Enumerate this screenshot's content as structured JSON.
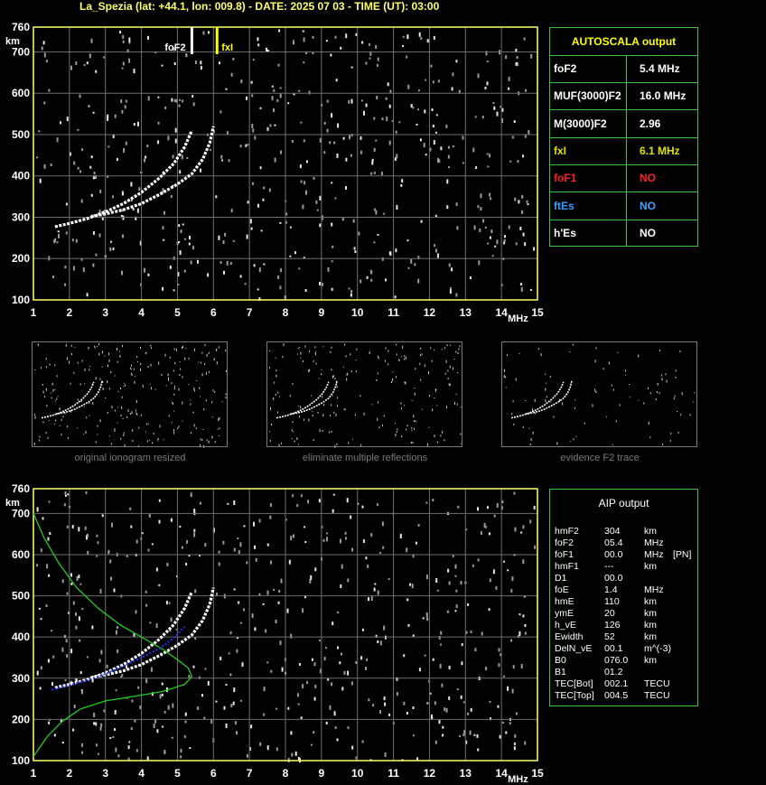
{
  "header": {
    "title": "La_Spezia (lat: +44.1, lon: 009.8) - DATE: 2025 07 03 - TIME (UT): 03:00"
  },
  "colors": {
    "axis": "#ffff66",
    "grid": "#6e6e6e",
    "trace": "#ffffff",
    "panel_border": "#3cc23c",
    "profile": "#22cc22",
    "fit": "#2233ff",
    "foF1": "#ff2020",
    "ftEs": "#3aa0ff",
    "fxI": "#e0e000"
  },
  "chart_data": [
    {
      "type": "scatter",
      "name": "ionogram-top",
      "x_tick_labels": [
        "1",
        "2",
        "3",
        "4",
        "5",
        "6",
        "7",
        "8",
        "9",
        "10",
        "11",
        "12",
        "13",
        "14",
        "15"
      ],
      "y_tick_labels": [
        "100",
        "200",
        "300",
        "400",
        "500",
        "600",
        "700",
        "760"
      ],
      "xunit": "MHz",
      "yunit": "km",
      "xlim": [
        1,
        15
      ],
      "ylim": [
        100,
        760
      ],
      "grid": true,
      "markers": [
        {
          "label": "foF2",
          "x": 5.4,
          "color": "#ffffff"
        },
        {
          "label": "fxI",
          "x": 6.1,
          "color": "#ffff00"
        }
      ],
      "series": [
        {
          "x": [
            1.6,
            2.0,
            2.5,
            3.0,
            3.5,
            4.0,
            4.5,
            4.9,
            5.2,
            5.4
          ],
          "y": [
            277,
            285,
            297,
            313,
            333,
            360,
            395,
            430,
            470,
            510
          ]
        },
        {
          "x": [
            2.6,
            3.0,
            3.5,
            4.0,
            4.5,
            5.0,
            5.4,
            5.7,
            5.9,
            6.0
          ],
          "y": [
            302,
            308,
            318,
            333,
            355,
            380,
            405,
            440,
            480,
            520
          ]
        }
      ]
    },
    {
      "type": "scatter",
      "name": "ionogram-bottom",
      "x_tick_labels": [
        "1",
        "2",
        "3",
        "4",
        "5",
        "6",
        "7",
        "8",
        "9",
        "10",
        "11",
        "12",
        "13",
        "14",
        "15"
      ],
      "y_tick_labels": [
        "100",
        "200",
        "300",
        "400",
        "500",
        "600",
        "700",
        "760"
      ],
      "xunit": "MHz",
      "yunit": "km",
      "xlim": [
        1,
        15
      ],
      "ylim": [
        100,
        760
      ],
      "grid": true,
      "series": [
        {
          "x": [
            1.6,
            2.0,
            2.5,
            3.0,
            3.5,
            4.0,
            4.5,
            4.9,
            5.2,
            5.4
          ],
          "y": [
            277,
            285,
            297,
            313,
            333,
            360,
            395,
            430,
            470,
            510
          ]
        },
        {
          "x": [
            2.6,
            3.0,
            3.5,
            4.0,
            4.5,
            5.0,
            5.4,
            5.7,
            5.9,
            6.0
          ],
          "y": [
            302,
            308,
            318,
            333,
            355,
            380,
            405,
            440,
            480,
            520
          ]
        },
        {
          "x": [
            1.0,
            1.3,
            1.7,
            2.2,
            2.8,
            3.4,
            4.0,
            4.6,
            5.0,
            5.3,
            5.4,
            5.2,
            4.6,
            3.8,
            3.0,
            2.3,
            1.8,
            1.4,
            1.2,
            1.0
          ],
          "y": [
            700,
            640,
            580,
            520,
            470,
            430,
            400,
            370,
            345,
            325,
            304,
            285,
            268,
            256,
            245,
            225,
            195,
            160,
            135,
            110
          ]
        },
        {
          "x": [
            1.5,
            2.0,
            2.5,
            3.0,
            3.5,
            4.0,
            4.5,
            4.9,
            5.2
          ],
          "y": [
            272,
            283,
            295,
            310,
            330,
            350,
            372,
            398,
            425
          ]
        }
      ]
    }
  ],
  "autoscala": {
    "title": "AUTOSCALA output",
    "rows": [
      {
        "label": "foF2",
        "value": "5.4 MHz",
        "lcolor": "#ffffff",
        "vcolor": "#ffffff"
      },
      {
        "label": "MUF(3000)F2",
        "value": "16.0 MHz",
        "lcolor": "#ffffff",
        "vcolor": "#ffffff"
      },
      {
        "label": "M(3000)F2",
        "value": "2.96",
        "lcolor": "#ffffff",
        "vcolor": "#ffffff"
      },
      {
        "label": "fxI",
        "value": "6.1 MHz",
        "lcolor": "#e0e000",
        "vcolor": "#e0e000"
      },
      {
        "label": "foF1",
        "value": "NO",
        "lcolor": "#ff2020",
        "vcolor": "#ff2020"
      },
      {
        "label": "ftEs",
        "value": "NO",
        "lcolor": "#3aa0ff",
        "vcolor": "#3aa0ff"
      },
      {
        "label": "h'Es",
        "value": "NO",
        "lcolor": "#ffffff",
        "vcolor": "#ffffff"
      }
    ]
  },
  "thumbnails": [
    {
      "caption": "original ionogram resized"
    },
    {
      "caption": "eliminate multiple reflections"
    },
    {
      "caption": "evidence F2 trace"
    }
  ],
  "aip": {
    "title": "AIP output",
    "rows": [
      [
        "hmF2",
        "304",
        "km",
        ""
      ],
      [
        "foF2",
        "05.4",
        "MHz",
        ""
      ],
      [
        "foF1",
        "00.0",
        "MHz",
        "[PN]"
      ],
      [
        "hmF1",
        "---",
        "km",
        ""
      ],
      [
        "D1",
        "00.0",
        "",
        ""
      ],
      [
        "foE",
        "1.4",
        "MHz",
        ""
      ],
      [
        "hmE",
        "110",
        "km",
        ""
      ],
      [
        "ymE",
        "20",
        "km",
        ""
      ],
      [
        "h_vE",
        "126",
        "km",
        ""
      ],
      [
        "Ewidth",
        "52",
        "km",
        ""
      ],
      [
        "DelN_vE",
        "00.1",
        "m^(-3)",
        ""
      ],
      [
        "B0",
        "076.0",
        "km",
        ""
      ],
      [
        "B1",
        "01.2",
        "",
        ""
      ],
      [
        "TEC[Bot]",
        "002.1",
        "TECU",
        ""
      ],
      [
        "TEC[Top]",
        "004.5",
        "TECU",
        ""
      ]
    ]
  }
}
